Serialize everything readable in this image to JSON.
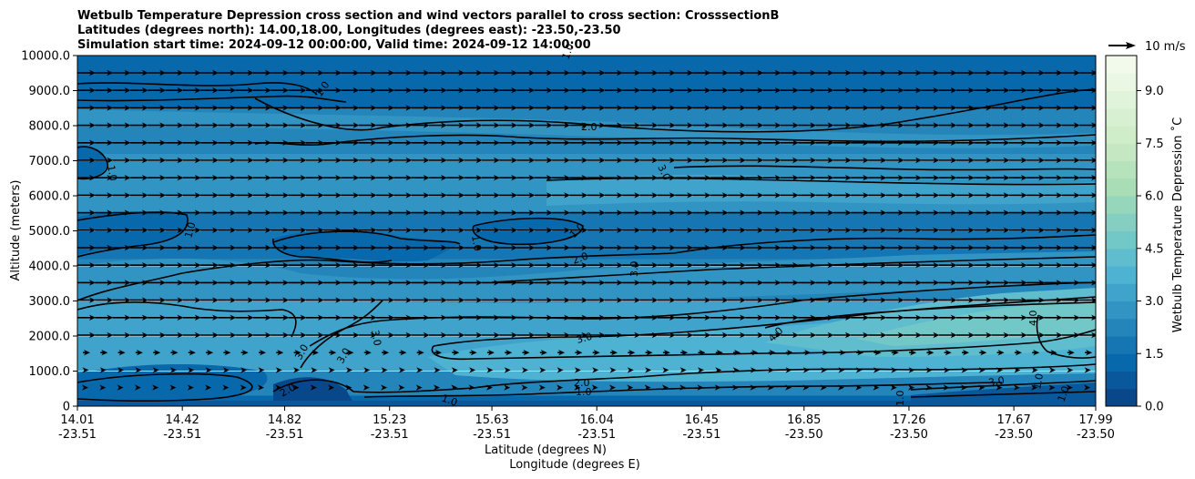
{
  "chart_data": {
    "type": "heatmap",
    "title_lines": [
      "Wetbulb Temperature Depression cross section and wind vectors parallel to cross section: CrosssectionB",
      "Latitudes (degrees north): 14.00,18.00, Longitudes (degrees east): -23.50,-23.50",
      "Simulation start time: 2024-09-12 00:00:00, Valid time: 2024-09-12 14:00:00"
    ],
    "xlabel": "Latitude (degrees N)",
    "xlabel2": "Longitude (degrees E)",
    "ylabel": "Altitude (meters)",
    "x_ticks": [
      {
        "lat": "14.01",
        "lon": "-23.51"
      },
      {
        "lat": "14.42",
        "lon": "-23.51"
      },
      {
        "lat": "14.82",
        "lon": "-23.51"
      },
      {
        "lat": "15.23",
        "lon": "-23.51"
      },
      {
        "lat": "15.63",
        "lon": "-23.51"
      },
      {
        "lat": "16.04",
        "lon": "-23.51"
      },
      {
        "lat": "16.45",
        "lon": "-23.51"
      },
      {
        "lat": "16.85",
        "lon": "-23.50"
      },
      {
        "lat": "17.26",
        "lon": "-23.50"
      },
      {
        "lat": "17.67",
        "lon": "-23.50"
      },
      {
        "lat": "17.99",
        "lon": "-23.50"
      }
    ],
    "x_tick_lat_values": [
      14.01,
      14.42,
      14.82,
      15.23,
      15.63,
      16.04,
      16.45,
      16.85,
      17.26,
      17.67,
      17.99
    ],
    "y_ticks": [
      "0",
      "1000.0",
      "2000.0",
      "3000.0",
      "4000.0",
      "5000.0",
      "6000.0",
      "7000.0",
      "8000.0",
      "9000.0",
      "10000.0"
    ],
    "xlim": [
      14.01,
      17.99
    ],
    "ylim": [
      0,
      10000
    ],
    "grid": "horizontal",
    "colorbar": {
      "label": "Wetbulb Temperature Depression ˚C",
      "ticks": [
        "0.0",
        "1.5",
        "3.0",
        "4.5",
        "6.0",
        "7.5",
        "9.0"
      ],
      "range": [
        0,
        10
      ],
      "levels": 20,
      "colormap": "GnBu_r"
    },
    "quiver_key": {
      "label": "10 m/s",
      "speed": 10
    },
    "contour_levels_labeled": [
      "1.0",
      "2.0",
      "3.0",
      "4.0"
    ],
    "bands": [
      {
        "low_alt": 0,
        "high_alt": 300,
        "value": 1.0
      },
      {
        "low_alt": 300,
        "high_alt": 1000,
        "value": 2.2
      },
      {
        "low_alt": 1000,
        "high_alt": 2000,
        "value": 3.4
      },
      {
        "low_alt": 2000,
        "high_alt": 3000,
        "value": 3.0
      },
      {
        "low_alt": 3000,
        "high_alt": 4200,
        "value": 2.4
      },
      {
        "low_alt": 4200,
        "high_alt": 5500,
        "value": 1.5
      },
      {
        "low_alt": 5500,
        "high_alt": 7200,
        "value": 2.6
      },
      {
        "low_alt": 7200,
        "high_alt": 8500,
        "value": 2.3
      },
      {
        "low_alt": 8500,
        "high_alt": 10000,
        "value": 1.2
      }
    ]
  }
}
